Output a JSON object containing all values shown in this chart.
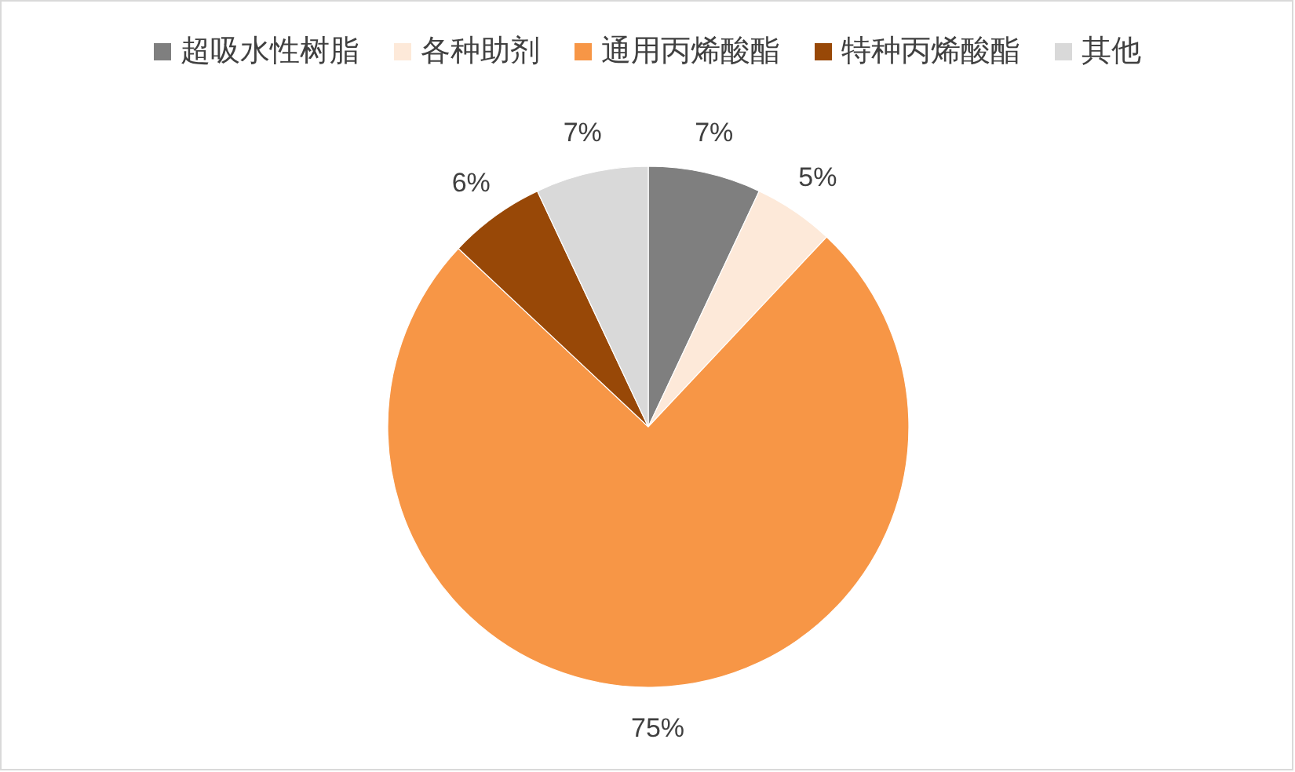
{
  "chart_data": {
    "type": "pie",
    "categories": [
      "超吸水性树脂",
      "各种助剂",
      "通用丙烯酸酯",
      "特种丙烯酸酯",
      "其他"
    ],
    "values": [
      7,
      5,
      75,
      6,
      7
    ],
    "colors": [
      "#7f7f7f",
      "#fde9d9",
      "#f79646",
      "#984807",
      "#d9d9d9"
    ],
    "value_labels": [
      "7%",
      "5%",
      "75%",
      "6%",
      "7%"
    ],
    "legend": "top"
  }
}
